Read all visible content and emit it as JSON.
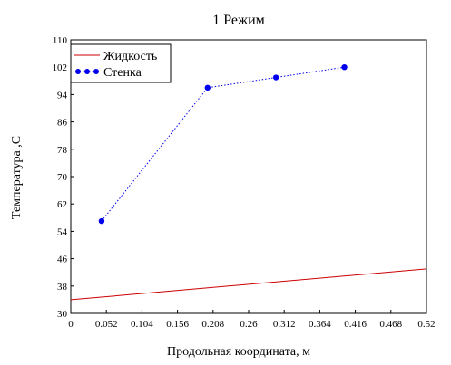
{
  "chart_data": {
    "type": "line",
    "title": "1 Режим",
    "xlabel": "Продольная координата, м",
    "ylabel": "Температура ,С",
    "xlim": [
      0,
      0.52
    ],
    "ylim": [
      30,
      110
    ],
    "x_ticks": [
      0,
      0.052,
      0.104,
      0.156,
      0.208,
      0.26,
      0.312,
      0.364,
      0.416,
      0.468,
      0.52
    ],
    "x_tick_labels": [
      "0",
      "0.052",
      "0.104",
      "0.156",
      "0.208",
      "0.26",
      "0.312",
      "0.364",
      "0.416",
      "0.468",
      "0.52"
    ],
    "y_ticks": [
      30,
      38,
      46,
      54,
      62,
      70,
      78,
      86,
      94,
      102,
      110
    ],
    "y_tick_labels": [
      "30",
      "38",
      "46",
      "54",
      "62",
      "70",
      "78",
      "86",
      "94",
      "102",
      "110"
    ],
    "grid": false,
    "legend_position": "top-left",
    "series": [
      {
        "name": "Жидкость",
        "style": "line",
        "color": "#cc0000",
        "x": [
          0,
          0.52
        ],
        "y": [
          34,
          43
        ]
      },
      {
        "name": "Стенка",
        "style": "dotted-markers",
        "color": "#0000ee",
        "x": [
          0.045,
          0.2,
          0.3,
          0.4
        ],
        "y": [
          57,
          96,
          99,
          102
        ]
      }
    ]
  }
}
